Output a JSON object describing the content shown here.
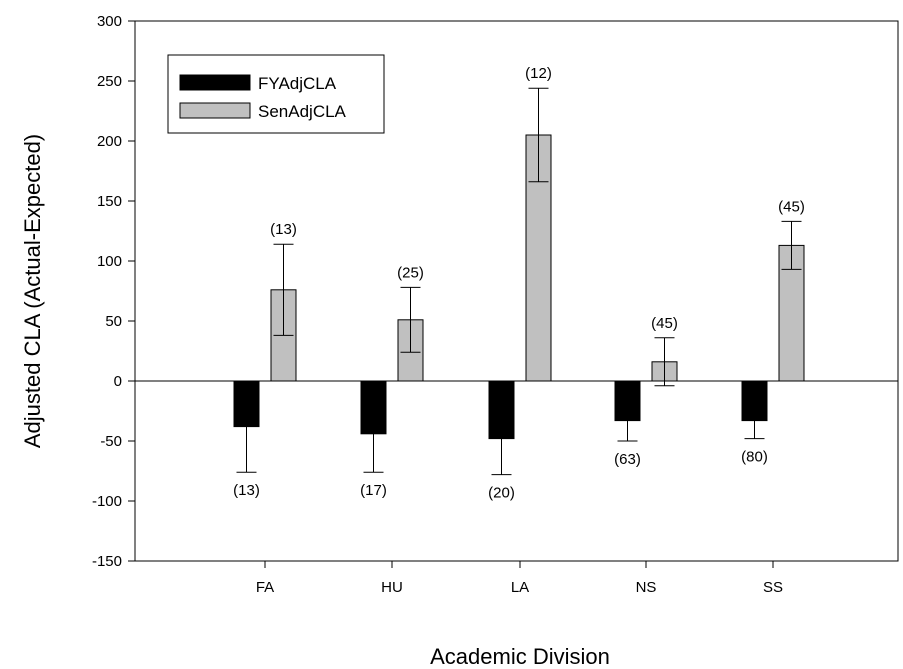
{
  "chart_data": {
    "type": "bar",
    "title": "",
    "xlabel": "Academic Division",
    "ylabel": "Adjusted CLA (Actual-Expected)",
    "ylim": [
      -150,
      300
    ],
    "yticks": [
      -150,
      -100,
      -50,
      0,
      50,
      100,
      150,
      200,
      250,
      300
    ],
    "categories": [
      "FA",
      "HU",
      "LA",
      "NS",
      "SS"
    ],
    "legend_position": "top-left",
    "grid": false,
    "series": [
      {
        "name": "FYAdjCLA",
        "color": "#000000",
        "values": [
          -38,
          -44,
          -48,
          -33,
          -33
        ],
        "error": [
          38,
          32,
          30,
          17,
          15
        ],
        "n_labels": [
          "(13)",
          "(17)",
          "(20)",
          "(63)",
          "(80)"
        ]
      },
      {
        "name": "SenAdjCLA",
        "color": "#c0c0c0",
        "values": [
          76,
          51,
          205,
          16,
          113
        ],
        "error": [
          38,
          27,
          39,
          20,
          20
        ],
        "n_labels": [
          "(13)",
          "(25)",
          "(12)",
          "(45)",
          "(45)"
        ]
      }
    ]
  }
}
